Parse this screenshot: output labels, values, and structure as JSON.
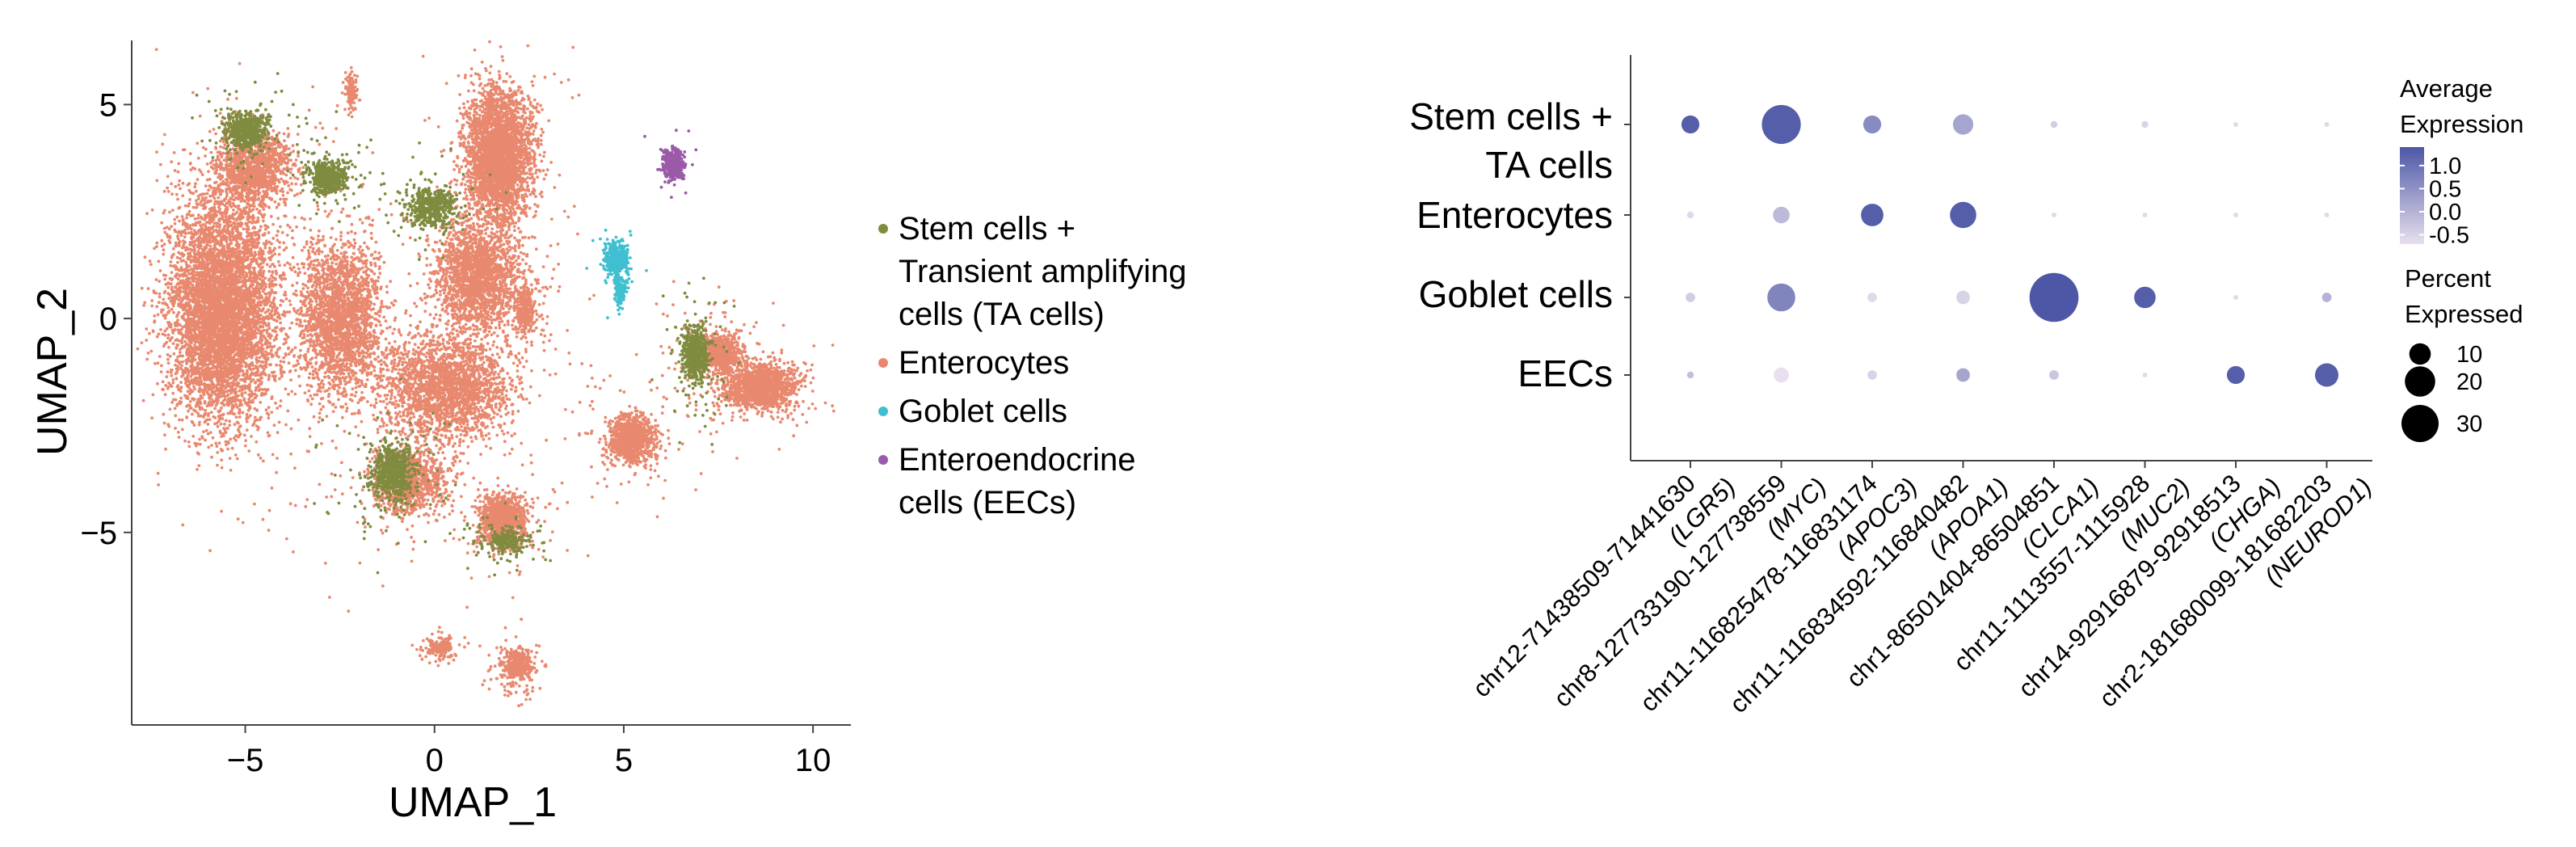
{
  "chart_data": [
    {
      "type": "scatter",
      "xlabel": "UMAP_1",
      "ylabel": "UMAP_2",
      "xlim": [
        -8,
        11
      ],
      "ylim": [
        -9.5,
        6.5
      ],
      "xticks": [
        -5,
        0,
        5,
        10
      ],
      "xtick_labels": [
        "−5",
        "0",
        "5",
        "10"
      ],
      "yticks": [
        -5,
        0,
        5
      ],
      "ytick_labels": [
        "−5",
        "0",
        "5"
      ],
      "grid": false,
      "legend_position": "right",
      "series": [
        {
          "name": "Stem cells + Transient amplifying cells (TA cells)",
          "legend_lines": [
            "Stem cells +",
            "Transient amplifying",
            "cells (TA cells)"
          ],
          "color": "#7f8b3f",
          "clusters": [
            {
              "x": -5.0,
              "y": 4.4,
              "sx": 0.45,
              "sy": 0.35,
              "n": 500
            },
            {
              "x": -2.8,
              "y": 3.3,
              "sx": 0.4,
              "sy": 0.3,
              "n": 450
            },
            {
              "x": -0.1,
              "y": 2.6,
              "sx": 0.5,
              "sy": 0.35,
              "n": 450
            },
            {
              "x": 6.9,
              "y": -0.8,
              "sx": 0.3,
              "sy": 0.55,
              "n": 500
            },
            {
              "x": -1.1,
              "y": -3.6,
              "sx": 0.5,
              "sy": 0.55,
              "n": 550
            },
            {
              "x": 1.9,
              "y": -5.2,
              "sx": 0.35,
              "sy": 0.2,
              "n": 150
            }
          ],
          "scatter_n": 500
        },
        {
          "name": "Enterocytes",
          "legend_lines": [
            "Enterocytes"
          ],
          "color": "#e8896f",
          "clusters": [
            {
              "x": -5.6,
              "y": 0.2,
              "sx": 1.2,
              "sy": 2.2,
              "n": 5500
            },
            {
              "x": -4.8,
              "y": 3.5,
              "sx": 0.8,
              "sy": 0.7,
              "n": 1200
            },
            {
              "x": -2.5,
              "y": 0.0,
              "sx": 0.9,
              "sy": 1.5,
              "n": 2200
            },
            {
              "x": 1.7,
              "y": 3.8,
              "sx": 0.75,
              "sy": 1.3,
              "n": 3000
            },
            {
              "x": 1.1,
              "y": 1.0,
              "sx": 0.9,
              "sy": 1.0,
              "n": 1800
            },
            {
              "x": 0.3,
              "y": -1.6,
              "sx": 1.4,
              "sy": 1.0,
              "n": 2200
            },
            {
              "x": 1.8,
              "y": -4.7,
              "sx": 0.5,
              "sy": 0.5,
              "n": 900
            },
            {
              "x": -0.7,
              "y": -3.8,
              "sx": 0.8,
              "sy": 0.6,
              "n": 900
            },
            {
              "x": 5.2,
              "y": -2.8,
              "sx": 0.5,
              "sy": 0.45,
              "n": 900
            },
            {
              "x": 8.6,
              "y": -1.6,
              "sx": 0.8,
              "sy": 0.45,
              "n": 1300
            },
            {
              "x": 7.5,
              "y": -0.8,
              "sx": 0.5,
              "sy": 0.4,
              "n": 600
            },
            {
              "x": 2.4,
              "y": 0.2,
              "sx": 0.2,
              "sy": 0.4,
              "n": 250
            },
            {
              "x": 2.2,
              "y": -8.1,
              "sx": 0.3,
              "sy": 0.3,
              "n": 350
            },
            {
              "x": 0.2,
              "y": -7.7,
              "sx": 0.2,
              "sy": 0.12,
              "n": 100
            },
            {
              "x": -2.2,
              "y": 5.3,
              "sx": 0.06,
              "sy": 0.15,
              "n": 40
            }
          ],
          "scatter_n": 1500
        },
        {
          "name": "Goblet cells",
          "legend_lines": [
            "Goblet cells"
          ],
          "color": "#3fbfcf",
          "clusters": [
            {
              "x": 4.8,
              "y": 1.4,
              "sx": 0.25,
              "sy": 0.3,
              "n": 420
            },
            {
              "x": 4.9,
              "y": 0.7,
              "sx": 0.12,
              "sy": 0.3,
              "n": 130
            }
          ],
          "scatter_n": 40
        },
        {
          "name": "Enteroendocrine cells (EECs)",
          "legend_lines": [
            "Enteroendocrine",
            "cells (EECs)"
          ],
          "color": "#9b5aa8",
          "clusters": [
            {
              "x": 6.3,
              "y": 3.6,
              "sx": 0.22,
              "sy": 0.28,
              "n": 400
            }
          ],
          "scatter_n": 20
        }
      ]
    },
    {
      "type": "dot",
      "rows": [
        {
          "lines": [
            "Stem cells +",
            "TA cells"
          ]
        },
        {
          "lines": [
            "Enterocytes"
          ]
        },
        {
          "lines": [
            "Goblet cells"
          ]
        },
        {
          "lines": [
            "EECs"
          ]
        }
      ],
      "columns": [
        {
          "lines": [
            "chr12-71438509-71441630",
            "(LGR5)"
          ]
        },
        {
          "lines": [
            "chr8-127733190-127738559",
            "(MYC)"
          ]
        },
        {
          "lines": [
            "chr11-116825478-116831174",
            "(APOC3)"
          ]
        },
        {
          "lines": [
            "chr11-116834592-116840482",
            "(APOA1)"
          ]
        },
        {
          "lines": [
            "chr1-86501404-86504851",
            "(CLCA1)"
          ]
        },
        {
          "lines": [
            "chr11-1113557-1115928",
            "(MUC2)"
          ]
        },
        {
          "lines": [
            "chr14-92916879-92918513",
            "(CHGA)"
          ]
        },
        {
          "lines": [
            "chr2-181680099-181682203",
            "(NEUROD1)"
          ]
        }
      ],
      "average_expression": [
        [
          1.3,
          1.3,
          0.6,
          0.2,
          -0.4,
          -0.5,
          -0.6,
          -0.6
        ],
        [
          -0.6,
          -0.1,
          1.3,
          1.3,
          -0.6,
          -0.6,
          -0.6,
          -0.6
        ],
        [
          -0.4,
          0.7,
          -0.6,
          -0.5,
          1.4,
          1.3,
          -0.6,
          0.0
        ],
        [
          -0.2,
          -0.7,
          -0.5,
          0.2,
          -0.3,
          -0.6,
          1.3,
          1.3
        ]
      ],
      "percent_expressed": [
        [
          7,
          33,
          7,
          9,
          1,
          1,
          0.5,
          0.5
        ],
        [
          1,
          6,
          11,
          15,
          0.5,
          0.5,
          0.5,
          0.5
        ],
        [
          2,
          17,
          2,
          4,
          52,
          10,
          0.5,
          2
        ],
        [
          1,
          5,
          2,
          4,
          2,
          0.5,
          7,
          12
        ]
      ],
      "color_scale": {
        "low": "#e8e0ee",
        "high": "#4d57a6",
        "domain": [
          -0.7,
          1.4
        ]
      },
      "color_legend": {
        "title_lines": [
          "Average",
          "Expression"
        ],
        "ticks": [
          1.0,
          0.5,
          0.0,
          -0.5
        ],
        "tick_labels": [
          "1.0",
          "0.5",
          "0.0",
          "-0.5"
        ]
      },
      "size_legend": {
        "title_lines": [
          "Percent",
          "Expressed"
        ],
        "values": [
          10,
          20,
          30
        ],
        "value_labels": [
          "10",
          "20",
          "30"
        ]
      }
    }
  ]
}
